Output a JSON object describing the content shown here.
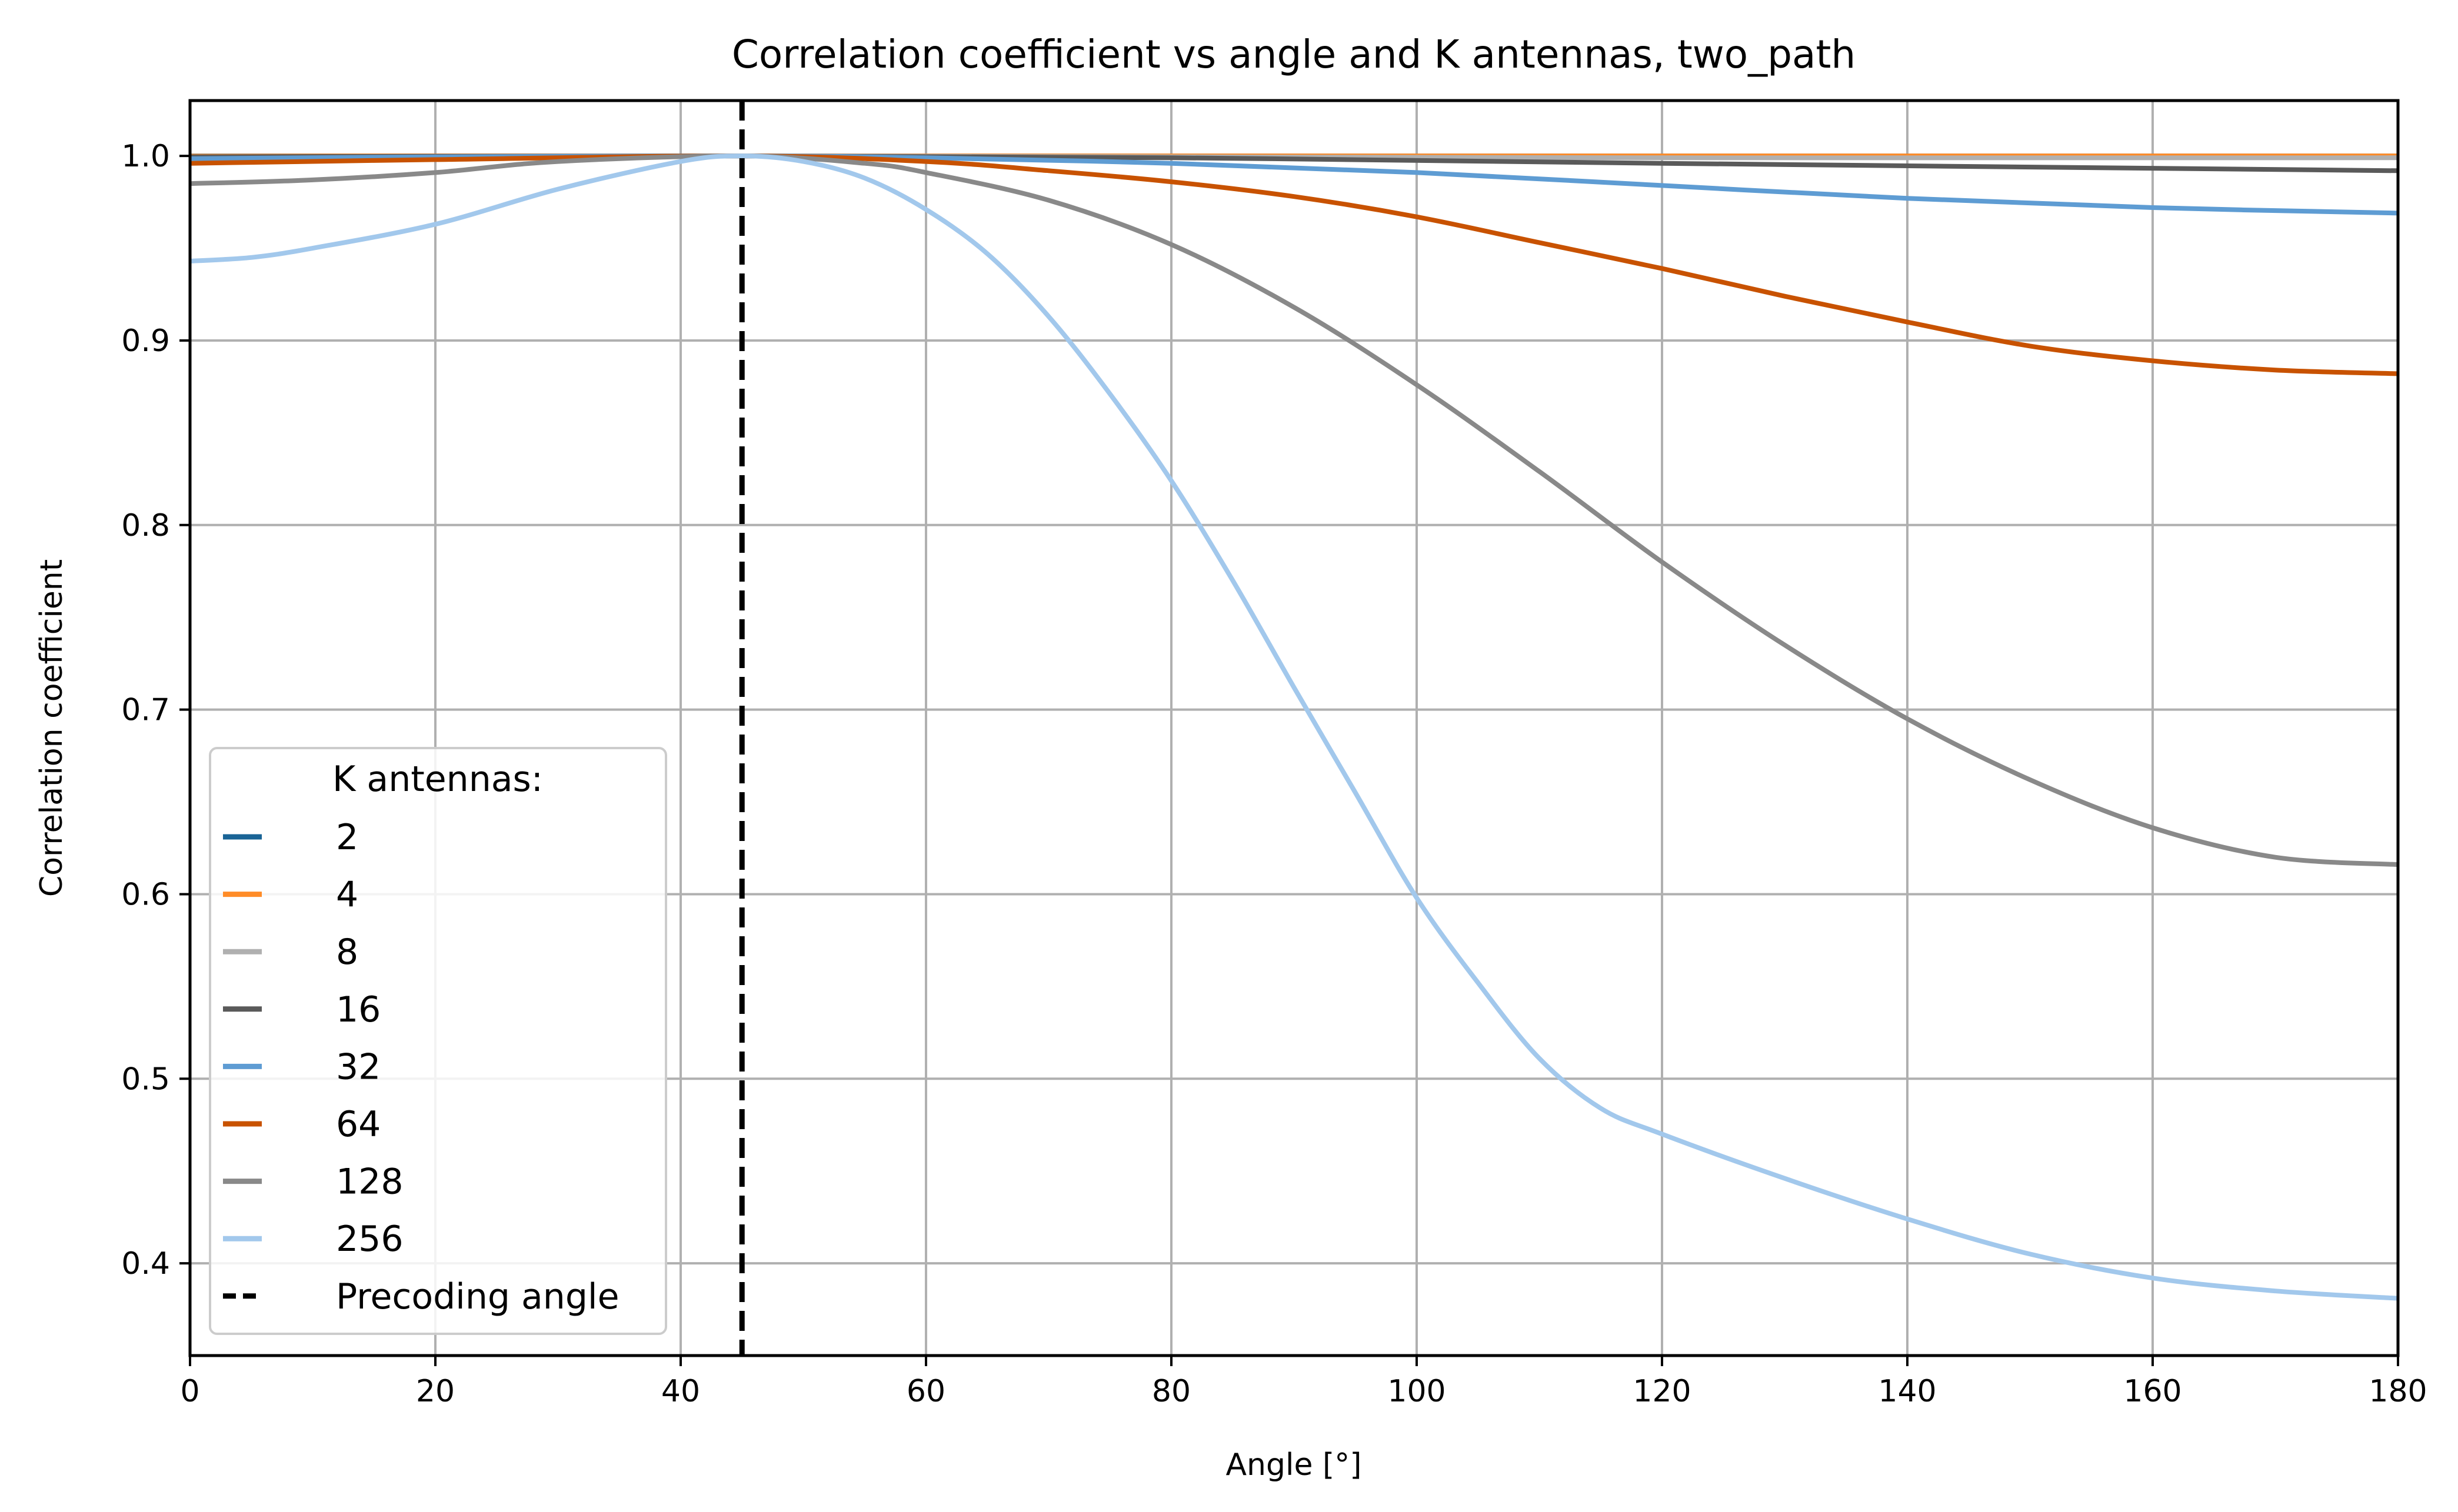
{
  "chart_data": {
    "type": "line",
    "title": "Correlation coefficient vs angle and K antennas, two_path",
    "xlabel": "Angle [°]",
    "ylabel": "Correlation coefficient",
    "xlim": [
      0,
      180
    ],
    "ylim": [
      0.35,
      1.03
    ],
    "xticks": [
      0,
      20,
      40,
      60,
      80,
      100,
      120,
      140,
      160,
      180
    ],
    "xtick_labels": [
      "0",
      "20",
      "40",
      "60",
      "80",
      "100",
      "120",
      "140",
      "160",
      "180"
    ],
    "yticks": [
      0.4,
      0.5,
      0.6,
      0.7,
      0.8,
      0.9,
      1.0
    ],
    "ytick_labels": [
      "0.4",
      "0.5",
      "0.6",
      "0.7",
      "0.8",
      "0.9",
      "1.0"
    ],
    "grid": true,
    "legend": {
      "title": "K antennas:",
      "placement": "lower-left"
    },
    "precoding_angle": {
      "name": "Precoding angle",
      "x": 45,
      "color": "#000000"
    },
    "series": [
      {
        "name": "2",
        "color": "#1a6496",
        "x": [
          0,
          20,
          45,
          80,
          120,
          180
        ],
        "y": [
          1.0,
          1.0,
          1.0,
          1.0,
          1.0,
          1.0
        ]
      },
      {
        "name": "4",
        "color": "#ff8c28",
        "x": [
          0,
          20,
          45,
          80,
          120,
          180
        ],
        "y": [
          0.9999,
          1.0,
          1.0,
          1.0,
          1.0,
          1.0
        ]
      },
      {
        "name": "8",
        "color": "#b0b0b0",
        "x": [
          0,
          20,
          45,
          80,
          120,
          180
        ],
        "y": [
          0.999,
          0.9995,
          1.0,
          0.9995,
          0.999,
          0.999
        ]
      },
      {
        "name": "16",
        "color": "#5a5a5a",
        "x": [
          0,
          20,
          45,
          80,
          120,
          180
        ],
        "y": [
          0.9995,
          0.9998,
          1.0,
          0.999,
          0.996,
          0.992
        ]
      },
      {
        "name": "32",
        "color": "#5e9cd3",
        "x": [
          0,
          20,
          45,
          60,
          80,
          100,
          120,
          140,
          160,
          180
        ],
        "y": [
          0.9985,
          0.9995,
          1.0,
          0.999,
          0.996,
          0.991,
          0.984,
          0.977,
          0.972,
          0.969
        ]
      },
      {
        "name": "64",
        "color": "#c85200",
        "x": [
          0,
          20,
          45,
          60,
          70,
          80,
          90,
          100,
          110,
          120,
          130,
          140,
          150,
          160,
          170,
          180
        ],
        "y": [
          0.996,
          0.998,
          1.0,
          0.997,
          0.992,
          0.986,
          0.978,
          0.967,
          0.953,
          0.939,
          0.924,
          0.91,
          0.897,
          0.889,
          0.884,
          0.882
        ]
      },
      {
        "name": "128",
        "color": "#898989",
        "x": [
          0,
          10,
          20,
          30,
          45,
          55,
          60,
          70,
          80,
          90,
          100,
          110,
          120,
          130,
          140,
          150,
          160,
          170,
          180
        ],
        "y": [
          0.985,
          0.987,
          0.991,
          0.997,
          1.0,
          0.996,
          0.991,
          0.976,
          0.952,
          0.918,
          0.876,
          0.829,
          0.78,
          0.735,
          0.695,
          0.662,
          0.636,
          0.62,
          0.616
        ]
      },
      {
        "name": "256",
        "color": "#a2c8ec",
        "x": [
          0,
          5,
          10,
          20,
          30,
          40,
          45,
          50,
          55,
          60,
          65,
          70,
          75,
          80,
          85,
          90,
          95,
          100,
          105,
          110,
          115,
          120,
          130,
          140,
          150,
          160,
          170,
          180
        ],
        "y": [
          0.943,
          0.945,
          0.95,
          0.963,
          0.982,
          0.997,
          1.0,
          0.997,
          0.988,
          0.971,
          0.947,
          0.913,
          0.871,
          0.824,
          0.77,
          0.712,
          0.655,
          0.598,
          0.552,
          0.511,
          0.484,
          0.47,
          0.446,
          0.424,
          0.405,
          0.392,
          0.385,
          0.381
        ]
      }
    ]
  }
}
